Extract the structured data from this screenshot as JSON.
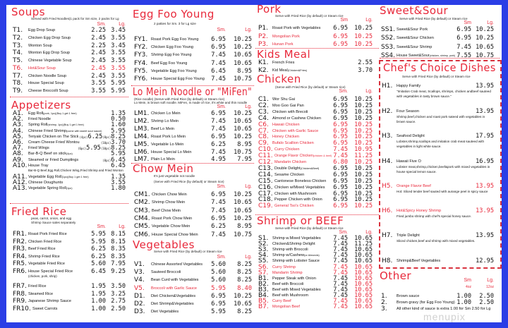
{
  "colors": {
    "background": "#2b3ee6",
    "accent_red": "#e8283a",
    "panel": "#ffffff"
  },
  "watermark": "menupix",
  "sections": {
    "soups": {
      "title": "Soups",
      "notes": [
        "Served with Fried Noodles(1 pack for Sm size, 2 packs for Lg"
      ],
      "sm": "Sm.",
      "lg": "Lg.",
      "items": [
        {
          "code": "T1.",
          "name": "Egg Drop Soup",
          "sm": "2.25",
          "lg": "3.45"
        },
        {
          "code": "T2.",
          "name": "Chicken Egg Drop Soup",
          "sm": "2.45",
          "lg": "3.55"
        },
        {
          "code": "T3.",
          "name": "Wonton Soup",
          "sm": "2.25",
          "lg": "3.45"
        },
        {
          "code": "T4.",
          "name": "Wonton Egg Drop Soup",
          "sm": "2.45",
          "lg": "3.55"
        },
        {
          "code": "T5.",
          "name": "Chinese Vegetable Soup",
          "sm": "2.45",
          "lg": "3.55"
        },
        {
          "code": "T6.",
          "name": "Hot&Sour Soup",
          "sm": "2.45",
          "lg": "3.55",
          "red": true
        },
        {
          "code": "T7.",
          "name": "Chicken Noodle Soup",
          "sm": "2.45",
          "lg": "3.55"
        },
        {
          "code": "T8.",
          "name": "House Special Soup",
          "sm": "3.55",
          "lg": "5.95"
        },
        {
          "code": "T9.",
          "name": "Cheese Broccolli Soup",
          "sm": "3.55",
          "lg": "5.95"
        }
      ]
    },
    "appetizers": {
      "title": "Appetizers",
      "notes": [],
      "items": [
        {
          "code": "A1.",
          "name": "Egg Roll",
          "detail": "(pork, 1pc)(Buy 1 get 1 free)",
          "lg": "1.35"
        },
        {
          "code": "A2.",
          "name": "Fried Noodle",
          "lg": "0.50"
        },
        {
          "code": "A3.",
          "name": "Spring Roll",
          "detail": "(shrimp, 1pc)(Buy 1 get 1 free)",
          "lg": "1.60"
        },
        {
          "code": "A4.",
          "name": "Chinese Fried Shrimp",
          "detail": "(come with sweet sour sauce)",
          "lg": "5.95"
        },
        {
          "code": "A5.",
          "name": "Teriyaki Chicken on The Stick",
          "lg": "(4pc)6.25(8pc)8.25"
        },
        {
          "code": "A6.",
          "name": "Cream Cheese Fried  Wontou",
          "lg": "(10pc)3.70"
        },
        {
          "code": "A7.",
          "name": "Fried Wings",
          "lg": "(6pc)5.95(10pc)8.25"
        },
        {
          "code": "A8.",
          "name": "Bar-B-Q Beef on stick",
          "detail": "(4pc)",
          "lg": "5.95"
        },
        {
          "code": "A9.",
          "name": "Steamed or Fried Dumplings",
          "lg": "(8pc)6.45"
        },
        {
          "code": "A10.",
          "name": "House Tray",
          "sub": "Bar-B-Q Beef,Egg Roll,Chicken Wing,Fried Shrimp and Fried Wonton",
          "lg": "6.45"
        },
        {
          "code": "A11.",
          "name": "Vegetable Egg Roll",
          "detail": "(1pc)(Buy 1 get 1 free)",
          "lg": "1.35"
        },
        {
          "code": "A12.",
          "name": "Chinese Doughunts",
          "lg": "3.55"
        },
        {
          "code": "A13.",
          "name": "Vegetable Spring Roll",
          "detail": "(1pc)",
          "lg": "1.80"
        }
      ]
    },
    "friedrice": {
      "title": "Fried Rice",
      "notes": [
        "peas, carrot,  onion, and egg",
        "Shrimp Sauce sales separately"
      ],
      "sm": "Sm.",
      "lg": "Lg.",
      "items": [
        {
          "code": "FR1.",
          "name": "Roast Pork Fried Rice",
          "sm": "5.95",
          "lg": "8.15"
        },
        {
          "code": "FR2.",
          "name": "Chicken Fried Rice",
          "sm": "5.95",
          "lg": "8.15"
        },
        {
          "code": "FR3.",
          "name": "Beef Fried Rice",
          "sm": "6.25",
          "lg": "8.35"
        },
        {
          "code": "FR4.",
          "name": "Shrimp Fried Rice",
          "sm": "6.25",
          "lg": "8.35"
        },
        {
          "code": "FR5.",
          "name": "Vegetable Fried Rice",
          "sm": "5.60",
          "lg": "7.95"
        },
        {
          "code": "FR6.",
          "name": "House Special Fried Rice",
          "sub": "(chicken, pork, shrip)",
          "sm": "6.45",
          "lg": "9.25"
        },
        {
          "code": "FR7.",
          "name": "Fried Rice",
          "sm": "1.95",
          "lg": "3.50"
        },
        {
          "code": "FR8.",
          "name": "Steamed Rice",
          "sm": "1.95",
          "lg": "3.25"
        },
        {
          "code": "FR9.",
          "name": "Japanese Shrimp Sauce",
          "sm": "1.00",
          "lg": "2.75"
        },
        {
          "code": "FR10.",
          "name": "Sweet Carrots",
          "sm": "1.00",
          "lg": "2.50"
        }
      ]
    },
    "eggfoo": {
      "title": "Egg Foo Young",
      "notes": [
        "2 patties for Sm. 3 for Lg size"
      ],
      "sm": "Sm.",
      "lg": "Lg.",
      "items": [
        {
          "code": "FY1.",
          "name": "Roast Pork Egg Foo Young",
          "sm": "6.95",
          "lg": "10.25"
        },
        {
          "code": "FY2.",
          "name": "Chicken Egg Foo Young",
          "sm": "6.95",
          "lg": "10.25"
        },
        {
          "code": "FY3.",
          "name": "Shrimp Egg Foo Young",
          "sm": "7.45",
          "lg": "10.65"
        },
        {
          "code": "FY4.",
          "name": "Beef Egg Foo Young",
          "sm": "7.45",
          "lg": "10.65"
        },
        {
          "code": "FY5.",
          "name": "Vegetable Egg Foo Young",
          "sm": "6.45",
          "lg": "8.95"
        },
        {
          "code": "FY6.",
          "name": "House Special Egg Foo Young",
          "sm": "7.45",
          "lg": "10.75"
        }
      ]
    },
    "lomein": {
      "title": "Lo Mein Noodle or  \"MiFen\"",
      "notes": [
        "(Rice noodle)  (Serve with Fried Rice (by default)  or Steam rice)",
        "Lo Mein, is brown soft noodle.   MiFen, is made of rice, it's white and thin noodle"
      ],
      "sm": "Sm.",
      "lg": "Lg.",
      "items": [
        {
          "code": "LM1.",
          "name": "Chicken Lo Mein",
          "sm": "6.95",
          "lg": "10.25"
        },
        {
          "code": "LM2.",
          "name": "Shrimp Lo Mein",
          "sm": "7.45",
          "lg": "10.65"
        },
        {
          "code": "LM3.",
          "name": "Beef Lo Mein",
          "sm": "7.45",
          "lg": "10.65"
        },
        {
          "code": "LM4.",
          "name": "Roast Pork Lo Mein",
          "sm": "6.95",
          "lg": "10.25"
        },
        {
          "code": "LM5.",
          "name": "Vegetable Lo Mein",
          "sm": "6.25",
          "lg": "8.95"
        },
        {
          "code": "LM6.",
          "name": "House Special Lo Mein",
          "sm": "7.45",
          "lg": "10.75"
        },
        {
          "code": "LM7.",
          "name": "Plain Lo Mein",
          "sm": "4.95",
          "lg": "7.95"
        }
      ]
    },
    "chowmein": {
      "title": "Chow Mein",
      "notes": [
        "It's just vegetable not noodle",
        "(Serve with Fried Rice (by default)  or Steam rice)"
      ],
      "sm": "Sm.",
      "lg": "Lg.",
      "items": [
        {
          "code": "CM1.",
          "name": "Chicken Chow Mein",
          "sm": "6.95",
          "lg": "10.25"
        },
        {
          "code": "CM2.",
          "name": "Shrimp Chow Mein",
          "sm": "7.45",
          "lg": "10.65"
        },
        {
          "code": "CM3.",
          "name": "Beef Chow Mein",
          "sm": "7.45",
          "lg": "10.65"
        },
        {
          "code": "CM4.",
          "name": "Roast Pork Chow Mein",
          "sm": "6.95",
          "lg": "10.25"
        },
        {
          "code": "CM5.",
          "name": "Vegetable Chow Mein",
          "sm": "6.25",
          "lg": "8.95"
        },
        {
          "code": "CM6.",
          "name": "House Special Chow Mein",
          "sm": "7.45",
          "lg": "10.75"
        }
      ]
    },
    "vegetables": {
      "title": "Vegetables",
      "notes": [
        "Serve with Fried Rice (by default)  or Steam rice"
      ],
      "sm": "Sm.",
      "lg": "Lg.",
      "items": [
        {
          "code": "V1.",
          "name": "Chinese Assorted Vegetables",
          "sm": "5.60",
          "lg": "8.25"
        },
        {
          "code": "V3.",
          "name": "Sauteed Broccoli",
          "sm": "5.60",
          "lg": "8.25"
        },
        {
          "code": "V4.",
          "name": "Bean Curd with Vegetables",
          "sm": "5.60",
          "lg": "8.25"
        },
        {
          "code": "V5.",
          "name": "Broccoli with Garlic Sauce",
          "sm": "5.95",
          "lg": "8.40",
          "red": true
        },
        {
          "code": "D1.",
          "name": "Diet Chicken&Vegetables",
          "sm": "6.95",
          "lg": "10.25"
        },
        {
          "code": "D2.",
          "name": "Diet Shrimp&Vegetables",
          "sm": "6.95",
          "lg": "10.65"
        },
        {
          "code": "D3.",
          "name": "Diet Vegetables",
          "sm": "5.95",
          "lg": "8.25"
        }
      ]
    },
    "pork": {
      "title": "Pork",
      "notes": [
        "Serve with Fried Rice (by default)  or  Steam rice"
      ],
      "sm": "Sm",
      "lg": "Lg.",
      "items": [
        {
          "code": "P1.",
          "name": "Roast Pork with Vegetables",
          "sm": "6.95",
          "lg": "10.25"
        },
        {
          "code": "P2.",
          "name": "Mongolian Pork",
          "sm": "6.95",
          "lg": "10.25",
          "red": true
        },
        {
          "code": "P3.",
          "name": "Hunan Pork",
          "sm": "6.95",
          "lg": "10.25",
          "red": true
        }
      ]
    },
    "kids": {
      "title": "Kids Meal",
      "notes": [],
      "items": [
        {
          "code": "K1.",
          "name": "French Fries",
          "lg": "2.55"
        },
        {
          "code": "K2.",
          "name": "Kid Meal",
          "detail": "(Chicken&Fries)",
          "lg": "3.70"
        }
      ]
    },
    "chicken": {
      "title": "Chicken",
      "notes": [
        "(Serve with Fried Rice (by default)  or Steam rice)"
      ],
      "sm": "Sm.",
      "lg": "Lg.",
      "items": [
        {
          "code": "C1.",
          "name": "Wor Shu Gai",
          "sm": "6.95",
          "lg": "10.25"
        },
        {
          "code": "C2.",
          "name": "Moo Goo Gai Pan",
          "sm": "6.95",
          "lg": "10.25"
        },
        {
          "code": "C3.",
          "name": "Chicken with Brecoli",
          "sm": "6.95",
          "lg": "10.25"
        },
        {
          "code": "C4.",
          "name": "Almond or Cashew Chicken",
          "sm": "6.95",
          "lg": "10.25"
        },
        {
          "code": "C6.",
          "name": "Hawaii Chicken",
          "sm": "6.95",
          "lg": "10.25",
          "red": true
        },
        {
          "code": "C7.",
          "name": "Chicken with Garlic Sauce",
          "sm": "6.95",
          "lg": "10.25",
          "red": true
        },
        {
          "code": "C8.",
          "name": "Honey Chicken",
          "sm": "6.95",
          "lg": "10.25",
          "red": true
        },
        {
          "code": "C9.",
          "name": "Bufalo Scallion Chicken",
          "sm": "6.95",
          "lg": "10.25",
          "red": true
        },
        {
          "code": "C10.",
          "name": "Curry Chicken",
          "sm": "7.45",
          "lg": "10.95",
          "red": true
        },
        {
          "code": "C11.",
          "name": "Orange Flavor Chicken",
          "detail": "(chicken & beef)",
          "sm": "7.45",
          "lg": "11.25",
          "red": true
        },
        {
          "code": "C12.",
          "name": "Mandarin Chicken",
          "sm": "6.80",
          "lg": "10.25",
          "red": true
        },
        {
          "code": "C13.",
          "name": "Double Delight",
          "detail": "(Chicken&Beef)",
          "sm": "6.95",
          "lg": "10.25"
        },
        {
          "code": "C14.",
          "name": "Sesame Chicken",
          "sm": "6.95",
          "lg": "10.25"
        },
        {
          "code": "C15.",
          "name": "Cantonese Boneless Chicken",
          "sm": "6.95",
          "lg": "10.25"
        },
        {
          "code": "C16.",
          "name": "Chicken w/Mixed Vegetables",
          "sm": "6.95",
          "lg": "10.25"
        },
        {
          "code": "C17.",
          "name": "Chicken with Mushroom",
          "sm": "6.95",
          "lg": "10.25"
        },
        {
          "code": "C18.",
          "name": "Pepper Chicken with Onion",
          "sm": "6.95",
          "lg": "10.25"
        },
        {
          "code": "C19.",
          "name": "General Tso's Chicken",
          "sm": "6.95",
          "lg": "10.25",
          "red": true
        }
      ]
    },
    "shrimp": {
      "title": "Shrimp or BEEF",
      "notes": [
        "Serve with Fried Rice (by default)  or Steam rice"
      ],
      "sm": "Sm.",
      "lg": "Lg.",
      "items": [
        {
          "code": "S1.",
          "name": "Shrimp w.Mixed Vegetables",
          "sm": "7.45",
          "lg": "10.65"
        },
        {
          "code": "S2.",
          "name": "Chicken&Shrimp Delight",
          "sm": "7.45",
          "lg": "11.25"
        },
        {
          "code": "S3.",
          "name": "Shrimp with Broccoli",
          "sm": "7.45",
          "lg": "10.65"
        },
        {
          "code": "S4.",
          "name": "Shrimp w/Cashew",
          "detail": "(or Almonds)",
          "sm": "7.45",
          "lg": "10.65"
        },
        {
          "code": "S5.",
          "name": "Shrimp with Lobster Sauce",
          "sm": "7.45",
          "lg": "10.65"
        },
        {
          "code": "S6.",
          "name": "Curry Shrimp",
          "sm": "7.45",
          "lg": "10.65",
          "red": true
        },
        {
          "code": "S7.",
          "name": "Mandarin Shrimp",
          "sm": "7.45",
          "lg": "10.65",
          "red": true
        },
        {
          "code": "B1.",
          "name": "Pepper Steak with Onion",
          "sm": "7.45",
          "lg": "10.65",
          "lg_red": true
        },
        {
          "code": "B2.",
          "name": "Beef with Broccoli",
          "sm": "7.45",
          "lg": "10.65",
          "lg_red": true
        },
        {
          "code": "B3.",
          "name": "Beef with Mixed Vegetables",
          "sm": "7.45",
          "lg": "10.65",
          "lg_red": true
        },
        {
          "code": "B4.",
          "name": "Beef with Mushroom",
          "sm": "7.45",
          "lg": "10.65",
          "lg_red": true
        },
        {
          "code": "B5.",
          "name": "Curry Beef",
          "sm": "7.45",
          "lg": "10.65",
          "red": true
        },
        {
          "code": "B7.",
          "name": "Mongolian Beef",
          "sm": "7.45",
          "lg": "10.65",
          "red": true
        }
      ]
    },
    "sweetsour": {
      "title": "Sweet&Sour",
      "notes": [
        "Serve with Fried Rice (by default)  or  Steam rice"
      ],
      "sm": "Sm",
      "lg": "Lg.",
      "items": [
        {
          "code": "SS1.",
          "name": "Sweet&Sour Pork",
          "sm": "6.95",
          "lg": "10.25"
        },
        {
          "code": "SS2.",
          "name": "Sweet&Sour Chicken",
          "sm": "6.95",
          "lg": "10.25"
        },
        {
          "code": "SS3.",
          "name": "Sweet&Sour Shrimp",
          "sm": "7.45",
          "lg": "10.65"
        },
        {
          "code": "SS4.",
          "name": "House Sweet&Sour",
          "detail": "(chicken, shrimp, pork)",
          "sm": "7.55",
          "lg": "10.75"
        }
      ]
    },
    "other": {
      "title": "Other",
      "notes": [],
      "sm": "Sm",
      "lg": "Lg.",
      "sm2": "4oz",
      "lg2": "12oz",
      "items": [
        {
          "code": "1.",
          "name": "Brown sauce",
          "sm": "1.00",
          "lg": "2.50"
        },
        {
          "code": "2.",
          "name": "Brown gravy (for Egg Foo Young)",
          "sm": "1.00",
          "lg": "2.50"
        },
        {
          "code": "3.",
          "name": "All other kind of sauce is extra 1.00 for Sm 2.50 for Lg"
        }
      ]
    }
  },
  "chefs": {
    "title": "Chef's Choice Dishes",
    "note": "Serve with Fried Rice (by default)  or Steam rice",
    "items": [
      {
        "code": "H1.",
        "name": "Happy Family",
        "price": "13.95",
        "desc": "\"Imitation Crab meat,  Scallops,  shrimps,  chicken andbeef sauteed with vegetables in tasty brown sauce.\""
      },
      {
        "code": "H2.",
        "name": "Four Season",
        "price": "13.95",
        "desc": "Shrimp,beef,chicken and roast pork sateed with vegetables in brown sauce."
      },
      {
        "code": "H3.",
        "name": "Seafood Delight",
        "price": "17.95",
        "desc": "Lobster,shrimp,scallops and imitation crab meat sauteed with vegetables in light white sauce."
      },
      {
        "code": "H4.",
        "name": "Hawaii Five O",
        "price": "16.95",
        "desc": "Lobster meat,shrimp,chicken,beef&pork with mixed vegetables in house special lemon sauce."
      },
      {
        "code": "H5.",
        "name": "Orange Flavor Beef",
        "price": "13.95",
        "desc": "Hot: Sliced tender beef sauted with aurange peel in spicy sauce",
        "red": true
      },
      {
        "code": "H6.",
        "name": "Hot&Spicy Honey Shrimp",
        "price": "13.95",
        "desc": "Fried jumbo shrimp with chef's special honey sauce.",
        "red": true
      },
      {
        "code": "H7.",
        "name": "Triple Delight",
        "price": "13.95",
        "desc": "Sliced chicken,beef and shrimp with mixed vegetables."
      },
      {
        "code": "H8.",
        "name": "Shrimp&Beef Vegetables",
        "price": "12.95"
      }
    ]
  }
}
